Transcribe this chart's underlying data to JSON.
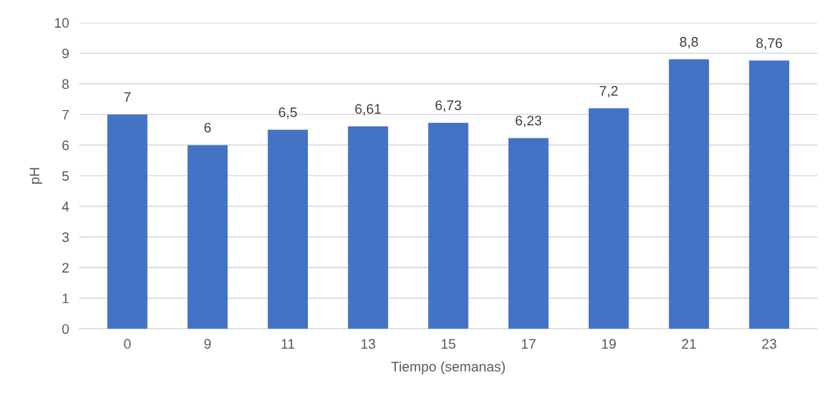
{
  "chart_data": {
    "type": "bar",
    "xlabel": "Tiempo (semanas)",
    "ylabel": "pH",
    "categories": [
      "0",
      "9",
      "11",
      "13",
      "15",
      "17",
      "19",
      "21",
      "23"
    ],
    "values": [
      7,
      6,
      6.5,
      6.61,
      6.73,
      6.23,
      7.2,
      8.8,
      8.76
    ],
    "value_labels": [
      "7",
      "6",
      "6,5",
      "6,61",
      "6,73",
      "6,23",
      "7,2",
      "8,8",
      "8,76"
    ],
    "color": "#4472c4",
    "ylim": [
      0,
      10
    ],
    "yticks": [
      0,
      1,
      2,
      3,
      4,
      5,
      6,
      7,
      8,
      9,
      10
    ],
    "grid": "y"
  }
}
